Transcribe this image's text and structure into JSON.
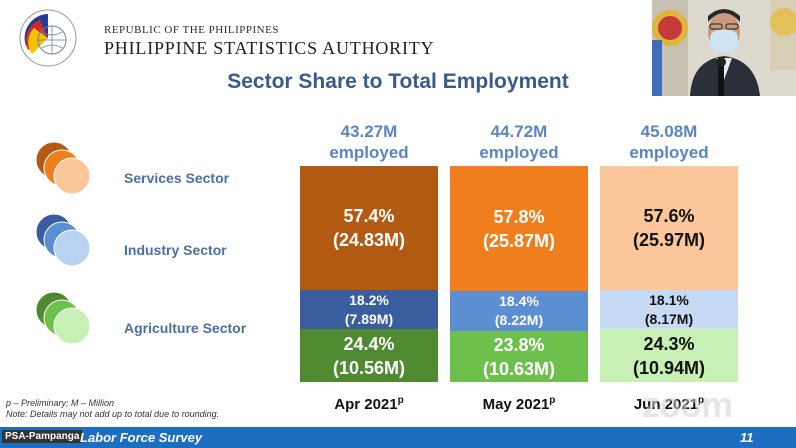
{
  "header": {
    "republic": "REPUBLIC OF THE PHILIPPINES",
    "authority": "PHILIPPINE STATISTICS AUTHORITY",
    "title": "Sector Share to Total Employment"
  },
  "legend": [
    {
      "label": "Services Sector",
      "colors": [
        "#b35a12",
        "#f07e1d",
        "#fbc69a"
      ]
    },
    {
      "label": "Industry Sector",
      "colors": [
        "#3a5da0",
        "#5b8ed3",
        "#b8d4f2"
      ]
    },
    {
      "label": "Agriculture Sector",
      "colors": [
        "#4f8a30",
        "#6ec04d",
        "#c8f0b5"
      ]
    }
  ],
  "columns": [
    {
      "employed": "43.27M",
      "employed_label": "employed",
      "services": {
        "pct": "57.4%",
        "val": "(24.83M)"
      },
      "industry": {
        "pct": "18.2%",
        "val": "(7.89M)"
      },
      "agriculture": {
        "pct": "24.4%",
        "val": "(10.56M)"
      },
      "x_label": "Apr 2021",
      "x_sup": "p"
    },
    {
      "employed": "44.72M",
      "employed_label": "employed",
      "services": {
        "pct": "57.8%",
        "val": "(25.87M)"
      },
      "industry": {
        "pct": "18.4%",
        "val": "(8.22M)"
      },
      "agriculture": {
        "pct": "23.8%",
        "val": "(10.63M)"
      },
      "x_label": "May 2021",
      "x_sup": "p"
    },
    {
      "employed": "45.08M",
      "employed_label": "employed",
      "services": {
        "pct": "57.6%",
        "val": "(25.97M)"
      },
      "industry": {
        "pct": "18.1%",
        "val": "(8.17M)"
      },
      "agriculture": {
        "pct": "24.3%",
        "val": "(10.94M)"
      },
      "x_label": "Jun 2021",
      "x_sup": "p"
    }
  ],
  "colors": {
    "services": [
      "#b35a12",
      "#f07e1d",
      "#fbc69a"
    ],
    "industry": [
      "#3a5da0",
      "#5b8ed3",
      "#c6daf5"
    ],
    "agriculture": [
      "#4f8a30",
      "#6ec04d",
      "#c8f0b5"
    ],
    "text_dark": [
      "#ffffff",
      "#ffffff",
      "#111111"
    ]
  },
  "notes": {
    "line1": "p – Preliminary; M – Million",
    "line2": "Note: Details may not add up to total due to rounding."
  },
  "footer": {
    "title": "Labor Force Survey",
    "page": "11",
    "speaker_tag": "PSA-Pampanga"
  },
  "watermark": "zoom",
  "icons": {
    "logo": "psa-logo-icon",
    "video": "speaker-video-icon"
  }
}
